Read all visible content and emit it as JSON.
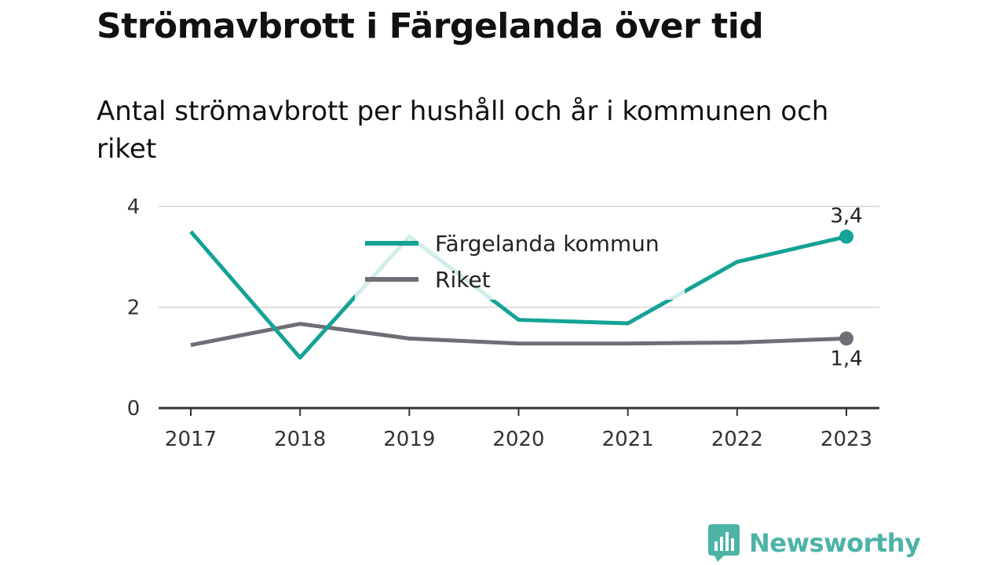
{
  "title": "Strömavbrott i Färgelanda över tid",
  "subtitle": "Antal strömavbrott per hushåll och år i kommunen och riket",
  "brand": "Newsworthy",
  "chart_data": {
    "type": "line",
    "categories": [
      "2017",
      "2018",
      "2019",
      "2020",
      "2021",
      "2022",
      "2023"
    ],
    "ylim": [
      0,
      4
    ],
    "yticks": [
      0,
      2,
      4
    ],
    "grid": true,
    "legend_position": "top-center",
    "series": [
      {
        "name": "Färgelanda kommun",
        "color": "#14a396",
        "values": [
          3.5,
          1.0,
          3.4,
          1.75,
          1.68,
          2.9,
          3.4
        ],
        "end_label": "3,4"
      },
      {
        "name": "Riket",
        "color": "#6f6e76",
        "values": [
          1.25,
          1.67,
          1.38,
          1.28,
          1.28,
          1.3,
          1.38
        ],
        "end_label": "1,4"
      }
    ]
  }
}
